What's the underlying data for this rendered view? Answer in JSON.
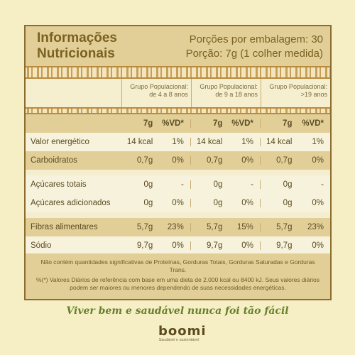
{
  "header": {
    "title": "Informações Nutricionais",
    "portions_line1": "Porções por embalagem: 30",
    "portions_line2": "Porção: 7g (1 colher medida)"
  },
  "groups": [
    "Grupo Populacional: de 4 a 8 anos",
    "Grupo Populacional: de 9 a 18 anos",
    "Grupo Populacional: >19 anos"
  ],
  "columns": {
    "amount": "7g",
    "vd": "%VD*"
  },
  "rows": [
    {
      "label": "Valor energético",
      "vals": [
        "14 kcal",
        "1%",
        "14 kcal",
        "1%",
        "14 kcal",
        "1%"
      ]
    },
    {
      "label": "Carboidratos",
      "vals": [
        "0,7g",
        "0%",
        "0,7g",
        "0%",
        "0,7g",
        "0%"
      ]
    },
    {
      "label": "Açúcares totais",
      "vals": [
        "0g",
        "-",
        "0g",
        "-",
        "0g",
        "-"
      ]
    },
    {
      "label": "Açúcares adicionados",
      "vals": [
        "0g",
        "0%",
        "0g",
        "0%",
        "0g",
        "0%"
      ]
    },
    {
      "label": "Fibras alimentares",
      "vals": [
        "5,7g",
        "23%",
        "5,7g",
        "15%",
        "5,7g",
        "23%"
      ]
    },
    {
      "label": "Sódio",
      "vals": [
        "9,7g",
        "0%",
        "9,7g",
        "0%",
        "9,7g",
        "0%"
      ]
    }
  ],
  "footer": {
    "note1": "Não contém quantidades significativas de Proteínas, Gorduras Totais, Gorduras Saturadas e Gorduras Trans.",
    "note2": "%(*) Valores Diários de referência com base em uma dieta de 2.000 kcal ou 8400 kJ. Seus valores diários podem ser maiores ou menores dependendo de suas necessidades energéticas."
  },
  "slogan": "Viver bem e saudável nunca foi tão fácil",
  "brand": {
    "name": "boomi",
    "tagline": "Saudável e sustentável"
  }
}
